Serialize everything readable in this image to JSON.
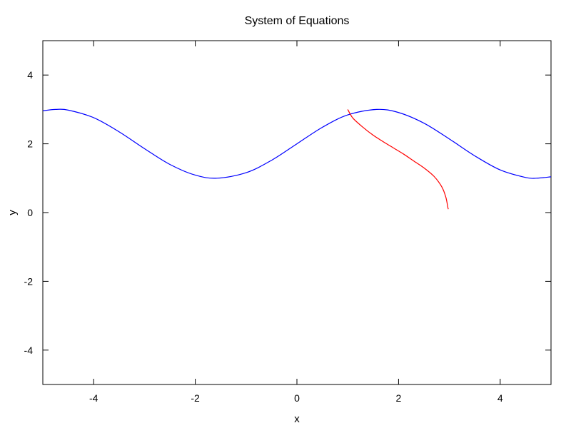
{
  "chart_data": {
    "type": "line",
    "title": "System of Equations",
    "xlabel": "x",
    "ylabel": "y",
    "xlim": [
      -5,
      5
    ],
    "ylim": [
      -5,
      5
    ],
    "x_ticks": [
      -4,
      -2,
      0,
      2,
      4
    ],
    "y_ticks": [
      -4,
      -2,
      0,
      2,
      4
    ],
    "x_tick_labels": [
      "-4",
      "-2",
      "0",
      "2",
      "4"
    ],
    "y_tick_labels": [
      "-4",
      "-2",
      "0",
      "2",
      "4"
    ],
    "grid": false,
    "legend": "none",
    "series": [
      {
        "color": "#0000ff",
        "points": [
          [
            -5.0,
            2.96
          ],
          [
            -4.75,
            3.0
          ],
          [
            -4.5,
            2.98
          ],
          [
            -4.0,
            2.76
          ],
          [
            -3.5,
            2.35
          ],
          [
            -3.0,
            1.86
          ],
          [
            -2.5,
            1.4
          ],
          [
            -2.0,
            1.09
          ],
          [
            -1.57,
            1.0
          ],
          [
            -1.0,
            1.16
          ],
          [
            -0.5,
            1.52
          ],
          [
            0.0,
            2.0
          ],
          [
            0.5,
            2.48
          ],
          [
            1.0,
            2.84
          ],
          [
            1.57,
            3.0
          ],
          [
            2.0,
            2.91
          ],
          [
            2.5,
            2.6
          ],
          [
            3.0,
            2.14
          ],
          [
            3.5,
            1.65
          ],
          [
            4.0,
            1.24
          ],
          [
            4.5,
            1.02
          ],
          [
            4.71,
            1.0
          ],
          [
            5.0,
            1.04
          ]
        ]
      },
      {
        "color": "#ff0000",
        "points": [
          [
            1.0,
            3.0
          ],
          [
            1.1,
            2.75
          ],
          [
            1.3,
            2.48
          ],
          [
            1.5,
            2.25
          ],
          [
            1.7,
            2.06
          ],
          [
            1.9,
            1.88
          ],
          [
            2.1,
            1.7
          ],
          [
            2.3,
            1.5
          ],
          [
            2.5,
            1.3
          ],
          [
            2.7,
            1.05
          ],
          [
            2.85,
            0.75
          ],
          [
            2.93,
            0.45
          ],
          [
            2.97,
            0.15
          ],
          [
            2.98,
            0.1
          ]
        ]
      }
    ]
  }
}
